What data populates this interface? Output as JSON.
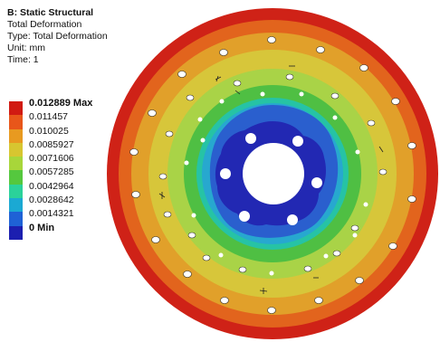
{
  "header": {
    "title": "B: Static Structural",
    "result_name": "Total Deformation",
    "type_line": "Type: Total Deformation",
    "unit_line": "Unit: mm",
    "time_line": "Time: 1"
  },
  "legend": {
    "entries": [
      {
        "label": "0.012889 Max",
        "color": "#d11a12",
        "bold": true
      },
      {
        "label": "0.011457",
        "color": "#e8561a",
        "bold": false
      },
      {
        "label": "0.010025",
        "color": "#e89a20",
        "bold": false
      },
      {
        "label": "0.0085927",
        "color": "#d7c630",
        "bold": false
      },
      {
        "label": "0.0071606",
        "color": "#a8d63a",
        "bold": false
      },
      {
        "label": "0.0057285",
        "color": "#55c83e",
        "bold": false
      },
      {
        "label": "0.0042964",
        "color": "#2bd29a",
        "bold": false
      },
      {
        "label": "0.0028642",
        "color": "#1ba9d3",
        "bold": false
      },
      {
        "label": "0.0014321",
        "color": "#1f62d6",
        "bold": false
      },
      {
        "label": "0 Min",
        "color": "#1c1fb0",
        "bold": true
      }
    ]
  },
  "model": {
    "colors": {
      "ring_red": "#cf2217",
      "ring_orange": "#e2641d",
      "ring_amber": "#e1a02a",
      "ring_yellow": "#d7c63a",
      "ring_lime": "#a9d347",
      "ring_green": "#4fbf43",
      "ring_teal": "#26c3a5",
      "ring_cyan": "#27a8cf",
      "hub_blue": "#2a5fce",
      "hub_navy": "#2228b3"
    }
  }
}
